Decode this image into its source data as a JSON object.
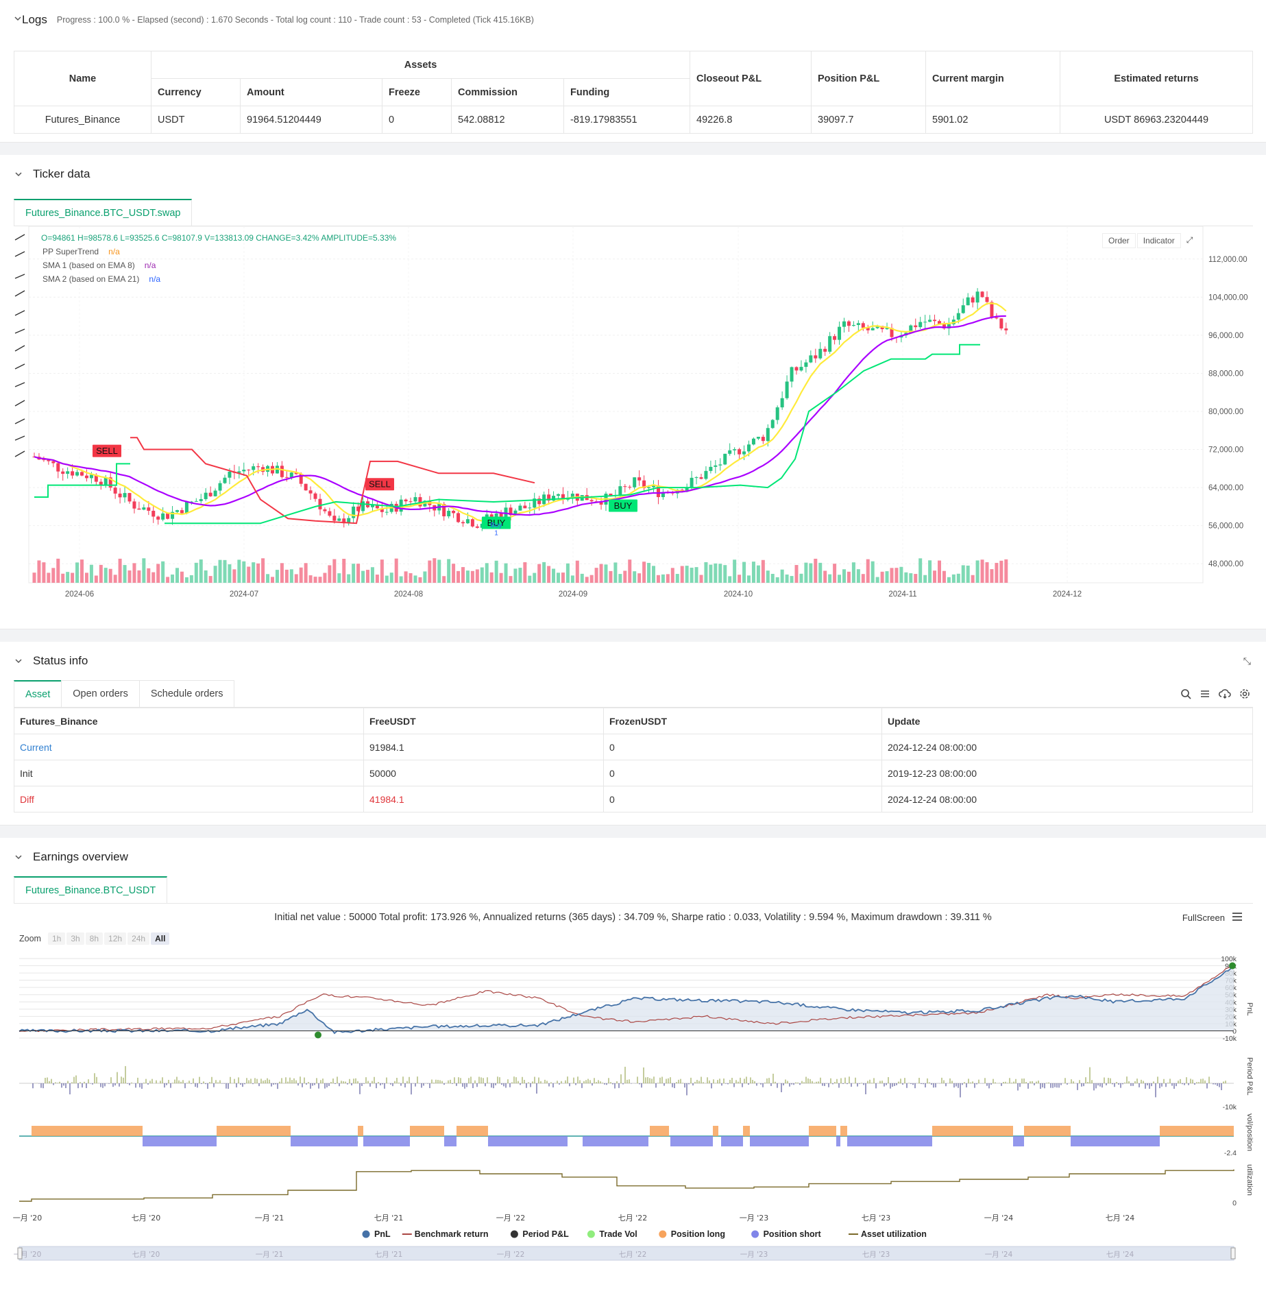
{
  "logs": {
    "title": "Logs",
    "info": "Progress : 100.0 % - Elapsed (second) : 1.670  Seconds - Total log count : 110 - Trade count : 53 - Completed (Tick 415.16KB)"
  },
  "assets_table": {
    "headers": {
      "name": "Name",
      "assets": "Assets",
      "currency": "Currency",
      "amount": "Amount",
      "freeze": "Freeze",
      "commission": "Commission",
      "funding": "Funding",
      "closeout": "Closeout P&L",
      "position": "Position P&L",
      "margin": "Current margin",
      "returns": "Estimated returns"
    },
    "row": {
      "name": "Futures_Binance",
      "currency": "USDT",
      "amount": "91964.51204449",
      "freeze": "0",
      "commission": "542.08812",
      "funding": "-819.17983551",
      "closeout": "49226.8",
      "position": "39097.7",
      "margin": "5901.02",
      "returns": "USDT 86963.23204449"
    }
  },
  "ticker": {
    "title": "Ticker data",
    "tab": "Futures_Binance.BTC_USDT.swap",
    "ohlc": "O=94861  H=98578.6  L=93525.6  C=98107.9  V=133813.09  CHANGE=3.42%  AMPLITUDE=5.33%",
    "legend": [
      {
        "name": "PP SuperTrend",
        "value": "n/a",
        "color": "#f7931a"
      },
      {
        "name": "SMA 1 (based on EMA 8)",
        "value": "n/a",
        "color": "#9c27b0"
      },
      {
        "name": "SMA 2 (based on EMA 21)",
        "value": "n/a",
        "color": "#2962ff"
      }
    ],
    "buttons": {
      "order": "Order",
      "indicator": "Indicator"
    },
    "signals": {
      "sell1": "SELL",
      "sell2": "SELL",
      "buy1": "BUY",
      "buy2": "BUY",
      "buy_note": "Buy",
      "buy_note2": "1"
    }
  },
  "chart_data": {
    "type": "candlestick",
    "y_ticks": [
      "112,000.00",
      "104,000.00",
      "96,000.00",
      "88,000.00",
      "80,000.00",
      "72,000.00",
      "64,000.00",
      "56,000.00",
      "48,000.00"
    ],
    "x_ticks": [
      "2024-06",
      "2024-07",
      "2024-08",
      "2024-09",
      "2024-10",
      "2024-11",
      "2024-12"
    ],
    "ylim": [
      44000,
      116000
    ],
    "series": [
      {
        "name": "SMA 1 (based on EMA 8)",
        "color": "#ffeb3b"
      },
      {
        "name": "SMA 2 (based on EMA 21)",
        "color": "#aa00ff"
      },
      {
        "name": "PP SuperTrend",
        "colors": [
          "#00e676",
          "#f23645"
        ]
      }
    ]
  },
  "status": {
    "title": "Status info",
    "tabs": [
      "Asset",
      "Open orders",
      "Schedule orders"
    ],
    "headers": [
      "Futures_Binance",
      "FreeUSDT",
      "FrozenUSDT",
      "Update"
    ],
    "rows": [
      {
        "label": "Current",
        "free": "91984.1",
        "frozen": "0",
        "update": "2024-12-24 08:00:00"
      },
      {
        "label": "Init",
        "free": "50000",
        "frozen": "0",
        "update": "2019-12-23 08:00:00"
      },
      {
        "label": "Diff",
        "free": "41984.1",
        "frozen": "0",
        "update": "2024-12-24 08:00:00"
      }
    ]
  },
  "earnings": {
    "title": "Earnings overview",
    "tab": "Futures_Binance.BTC_USDT",
    "summary": "Initial net value : 50000  Total profit: 173.926 %, Annualized returns (365 days) : 34.709 %, Sharpe ratio : 0.033, Volatility : 9.594 %, Maximum drawdown : 39.311 %",
    "fullscreen": "FullScreen",
    "zoom_label": "Zoom",
    "zoom_options": [
      "1h",
      "3h",
      "8h",
      "12h",
      "24h",
      "All"
    ],
    "pnl_ticks": [
      "100k",
      "90k",
      "80k",
      "70k",
      "60k",
      "50k",
      "40k",
      "30k",
      "20k",
      "10k",
      "0",
      "-10k"
    ],
    "panel_labels": [
      "PnL",
      "Period P&L",
      "vol/position",
      "utilization"
    ],
    "period_tick": "-10k",
    "pos_tick": "-2.4",
    "util_tick": "0",
    "x_ticks": [
      "一月 '20",
      "七月 '20",
      "一月 '21",
      "七月 '21",
      "一月 '22",
      "七月 '22",
      "一月 '23",
      "七月 '23",
      "一月 '24",
      "七月 '24"
    ],
    "legend": [
      {
        "name": "PnL",
        "color": "#4572a7"
      },
      {
        "name": "Benchmark return",
        "color": "#aa4643"
      },
      {
        "name": "Period P&L",
        "color": "#333333"
      },
      {
        "name": "Trade Vol",
        "color": "#90ed7d"
      },
      {
        "name": "Position long",
        "color": "#f7a35c"
      },
      {
        "name": "Position short",
        "color": "#8085e9"
      },
      {
        "name": "Asset utilization",
        "color": "#7a6a2a"
      }
    ]
  }
}
